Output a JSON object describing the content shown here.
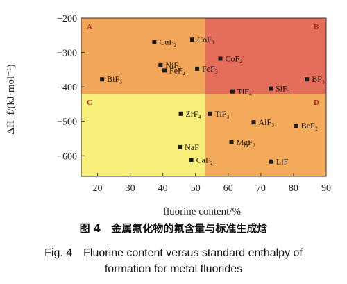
{
  "chart_data": {
    "type": "scatter",
    "xlabel": "fluorine content/%",
    "ylabel": "ΔH_f/(kJ·mol⁻¹)",
    "xlim": [
      15,
      90
    ],
    "ylim": [
      -660,
      -200
    ],
    "xticks": [
      20,
      30,
      40,
      50,
      60,
      70,
      80,
      90
    ],
    "yticks": [
      -200,
      -300,
      -400,
      -500,
      -600
    ],
    "grid": false,
    "regions": [
      {
        "label": "A",
        "x": [
          15,
          53
        ],
        "y": [
          -420,
          -200
        ],
        "color": "#f2a65a"
      },
      {
        "label": "B",
        "x": [
          53,
          90
        ],
        "y": [
          -420,
          -200
        ],
        "color": "#e46d5b"
      },
      {
        "label": "C",
        "x": [
          15,
          53
        ],
        "y": [
          -660,
          -420
        ],
        "color": "#f7ef7a"
      },
      {
        "label": "D",
        "x": [
          53,
          90
        ],
        "y": [
          -660,
          -420
        ],
        "color": "#f4ab5c"
      }
    ],
    "points": [
      {
        "name": "CuF₂",
        "x": 37.4,
        "y": -270
      },
      {
        "name": "CoF₃",
        "x": 49.0,
        "y": -263
      },
      {
        "name": "NiF₂",
        "x": 39.3,
        "y": -337
      },
      {
        "name": "FeF₂",
        "x": 40.5,
        "y": -352
      },
      {
        "name": "FeF₃",
        "x": 50.5,
        "y": -347
      },
      {
        "name": "CoF₂",
        "x": 57.6,
        "y": -318
      },
      {
        "name": "BiF₃",
        "x": 21.4,
        "y": -378
      },
      {
        "name": "TiF₄",
        "x": 61.3,
        "y": -413
      },
      {
        "name": "SiF₄",
        "x": 73.0,
        "y": -405
      },
      {
        "name": "BF₃",
        "x": 84.1,
        "y": -378
      },
      {
        "name": "ZrF₄",
        "x": 45.5,
        "y": -478
      },
      {
        "name": "TiF₃",
        "x": 54.4,
        "y": -478
      },
      {
        "name": "AlF₃",
        "x": 67.8,
        "y": -503
      },
      {
        "name": "BeF₂",
        "x": 80.8,
        "y": -513
      },
      {
        "name": "NaF",
        "x": 45.2,
        "y": -575
      },
      {
        "name": "MgF₂",
        "x": 61.0,
        "y": -561
      },
      {
        "name": "CaF₂",
        "x": 48.7,
        "y": -613
      },
      {
        "name": "LiF",
        "x": 73.2,
        "y": -617
      }
    ]
  },
  "captions": {
    "cn": "图 4　金属氟化物的氟含量与标准生成焓",
    "en_line1": "Fig. 4　Fluorine content versus standard enthalpy of",
    "en_line2": "formation for metal fluorides"
  }
}
